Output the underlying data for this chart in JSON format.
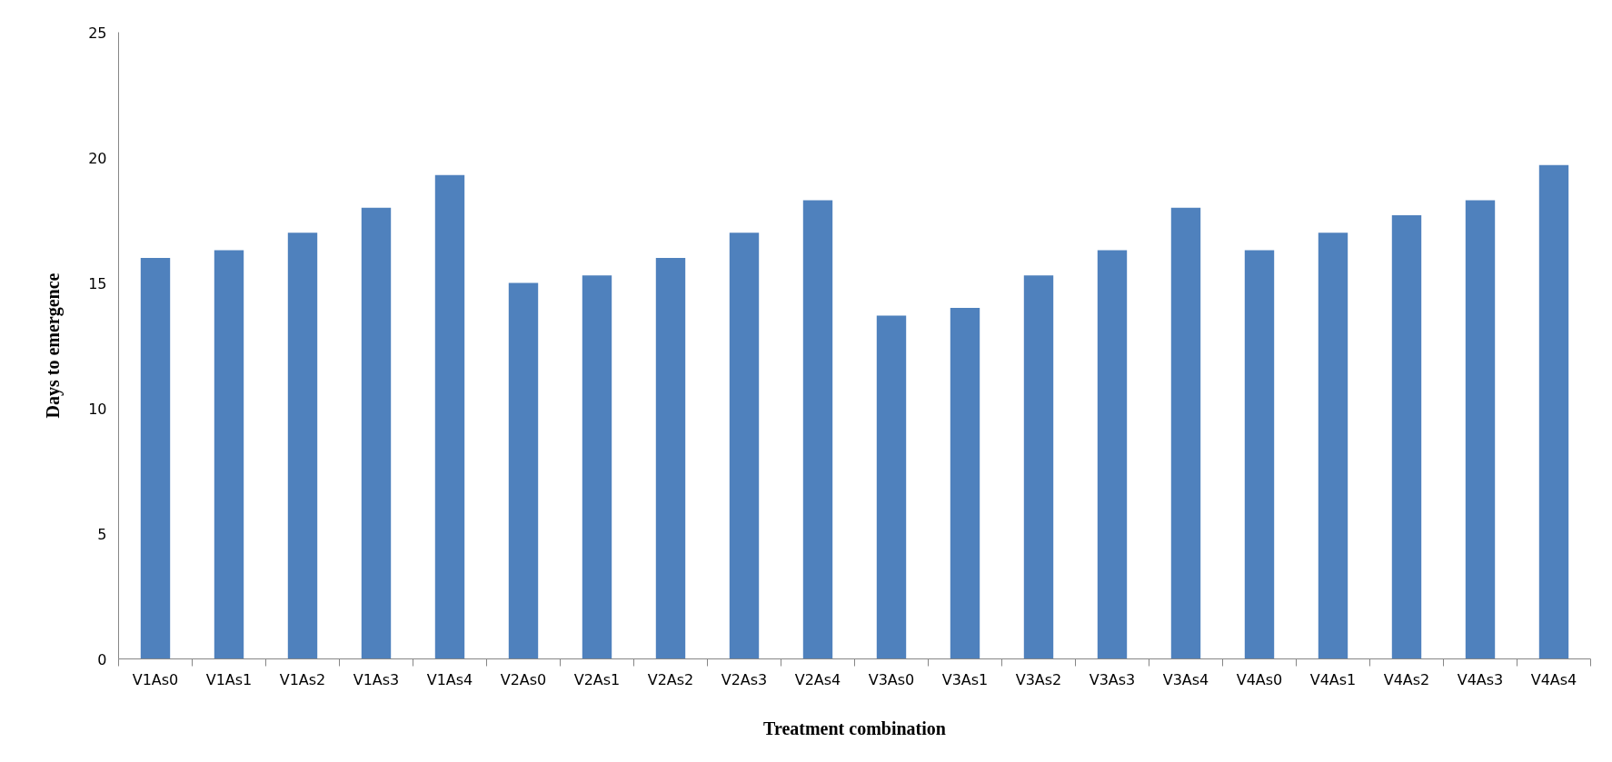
{
  "chart_data": {
    "type": "bar",
    "xlabel": "Treatment combination",
    "ylabel": "Days to emergence",
    "categories": [
      "V1As0",
      "V1As1",
      "V1As2",
      "V1As3",
      "V1As4",
      "V2As0",
      "V2As1",
      "V2As2",
      "V2As3",
      "V2As4",
      "V3As0",
      "V3As1",
      "V3As2",
      "V3As3",
      "V3As4",
      "V4As0",
      "V4As1",
      "V4As2",
      "V4As3",
      "V4As4"
    ],
    "values": [
      16,
      16.3,
      17,
      18,
      19.3,
      15,
      15.3,
      16,
      17,
      18.3,
      13.7,
      14,
      15.3,
      16.3,
      18,
      16.3,
      17,
      17.7,
      18.3,
      19.7
    ],
    "color": "#4f81bd",
    "ylim": [
      0,
      25
    ],
    "yticks": [
      0,
      5,
      10,
      15,
      20,
      25
    ],
    "grid": false
  }
}
